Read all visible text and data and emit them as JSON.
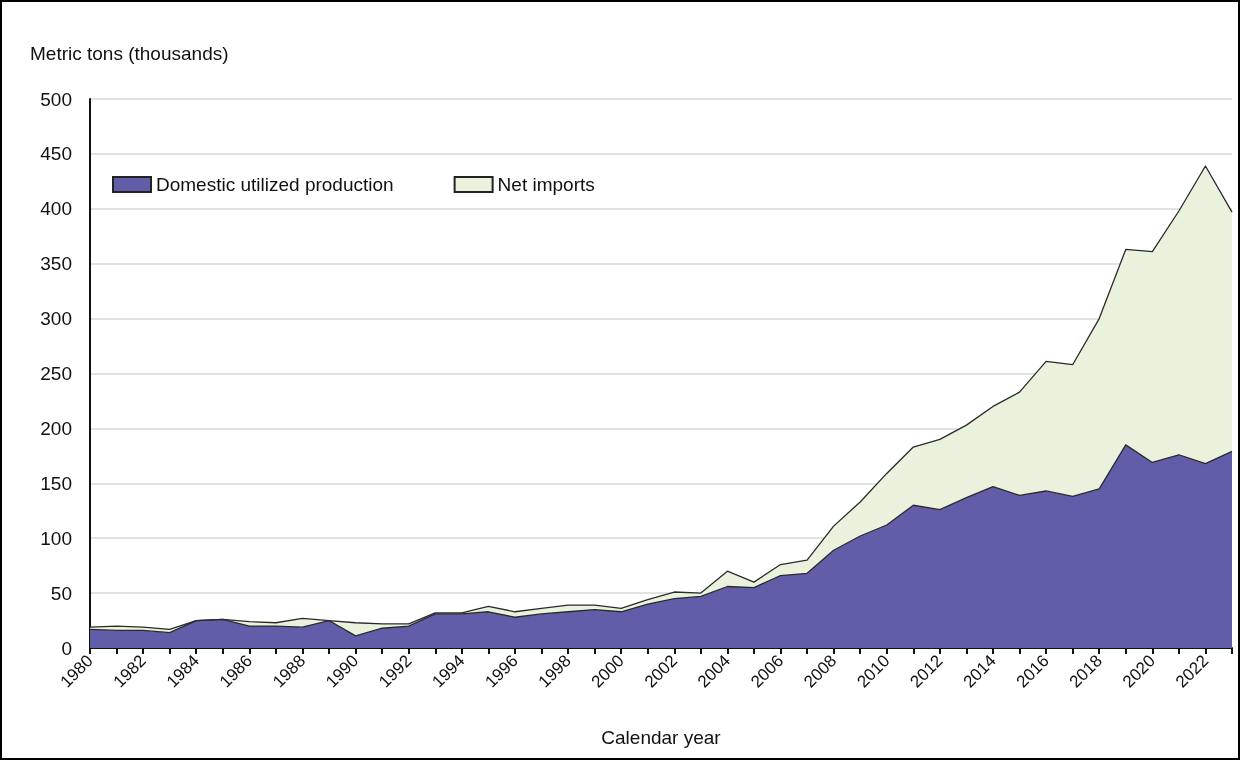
{
  "chart_data": {
    "type": "area",
    "ylabel": "Metric tons (thousands)",
    "xlabel": "Calendar year",
    "categories": [
      "1980",
      null,
      "1982",
      null,
      "1984",
      null,
      "1986",
      null,
      "1988",
      null,
      "1990",
      null,
      "1992",
      null,
      "1994",
      null,
      "1996",
      null,
      "1998",
      null,
      "2000",
      null,
      "2002",
      null,
      "2004",
      null,
      "2006",
      null,
      "2008",
      null,
      "2010",
      null,
      "2012",
      null,
      "2014",
      null,
      "2016",
      null,
      "2018",
      null,
      "2020",
      null,
      "2022",
      null
    ],
    "stacked": true,
    "series": [
      {
        "name": "Domestic utilized production",
        "color": "#625da8",
        "values": [
          17,
          16,
          16,
          14,
          25,
          26,
          20,
          20,
          19,
          25,
          11,
          18,
          20,
          31,
          31,
          33,
          28,
          31,
          33,
          35,
          33,
          40,
          45,
          47,
          56,
          55,
          66,
          68,
          89,
          102,
          112,
          130,
          126,
          137,
          147,
          139,
          143,
          138,
          145,
          185,
          169,
          176,
          168,
          179
        ]
      },
      {
        "name": "Net imports",
        "color": "#eaf2de",
        "values": [
          2,
          4,
          3,
          3,
          0,
          0,
          4,
          3,
          8,
          0,
          12,
          4,
          2,
          1,
          1,
          5,
          5,
          5,
          6,
          4,
          3,
          4,
          6,
          3,
          14,
          5,
          10,
          12,
          22,
          31,
          47,
          53,
          64,
          66,
          73,
          94,
          118,
          120,
          155,
          178,
          192,
          222,
          271,
          218
        ]
      }
    ],
    "ylim": [
      0,
      500
    ],
    "yticks": [
      0,
      50,
      100,
      150,
      200,
      250,
      300,
      350,
      400,
      450,
      500
    ],
    "grid": "y",
    "legend": "top left"
  }
}
